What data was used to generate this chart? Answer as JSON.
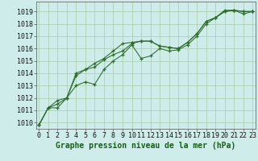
{
  "xlabel": "Graphe pression niveau de la mer (hPa)",
  "ylim": [
    1009.5,
    1019.8
  ],
  "xlim": [
    -0.3,
    23.3
  ],
  "yticks": [
    1010,
    1011,
    1012,
    1013,
    1014,
    1015,
    1016,
    1017,
    1018,
    1019
  ],
  "xticks": [
    0,
    1,
    2,
    3,
    4,
    5,
    6,
    7,
    8,
    9,
    10,
    11,
    12,
    13,
    14,
    15,
    16,
    17,
    18,
    19,
    20,
    21,
    22,
    23
  ],
  "bg_color": "#ceecea",
  "line_color": "#2d6a2d",
  "grid_color": "#aaccaa",
  "series1": [
    1009.8,
    1011.2,
    1011.5,
    1012.0,
    1014.0,
    1014.3,
    1014.8,
    1015.2,
    1015.8,
    1016.4,
    1016.5,
    1016.6,
    1016.6,
    1016.2,
    1016.1,
    1016.0,
    1016.5,
    1017.2,
    1018.2,
    1018.5,
    1019.0,
    1019.1,
    1019.0,
    1019.0
  ],
  "series2": [
    1009.8,
    1011.2,
    1011.8,
    1012.0,
    1013.8,
    1014.3,
    1014.5,
    1015.1,
    1015.5,
    1015.8,
    1016.4,
    1016.6,
    1016.6,
    1016.2,
    1016.1,
    1016.0,
    1016.5,
    1017.2,
    1018.2,
    1018.5,
    1019.1,
    1019.1,
    1019.0,
    1019.0
  ],
  "series3": [
    1009.8,
    1011.2,
    1011.2,
    1012.0,
    1013.0,
    1013.3,
    1013.1,
    1014.3,
    1015.0,
    1015.5,
    1016.3,
    1015.2,
    1015.4,
    1016.0,
    1015.8,
    1015.9,
    1016.3,
    1017.0,
    1018.0,
    1018.5,
    1019.0,
    1019.1,
    1018.8,
    1019.0
  ],
  "fontsize_label": 7,
  "fontsize_tick": 6
}
